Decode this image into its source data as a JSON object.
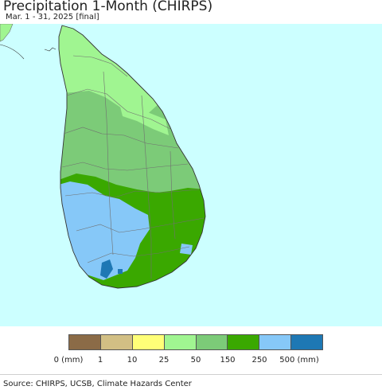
{
  "header": {
    "title": "Precipitation 1-Month (CHIRPS)",
    "subtitle": "Mar. 1 - 31, 2025 [final]"
  },
  "map": {
    "region": "Sri Lanka",
    "water_color": "#ccffff",
    "boundary_color": "#707070"
  },
  "legend": {
    "colors": [
      "#8b6b47",
      "#d2bf84",
      "#ffff78",
      "#a0f591",
      "#7ccb78",
      "#3aa800",
      "#86c8f8",
      "#1e78b4"
    ],
    "labels": [
      "0 (mm)",
      "1",
      "10",
      "25",
      "50",
      "150",
      "250",
      "500 (mm)"
    ]
  },
  "footer": {
    "source": "Source: CHIRPS, UCSB, Climate Hazards Center"
  }
}
